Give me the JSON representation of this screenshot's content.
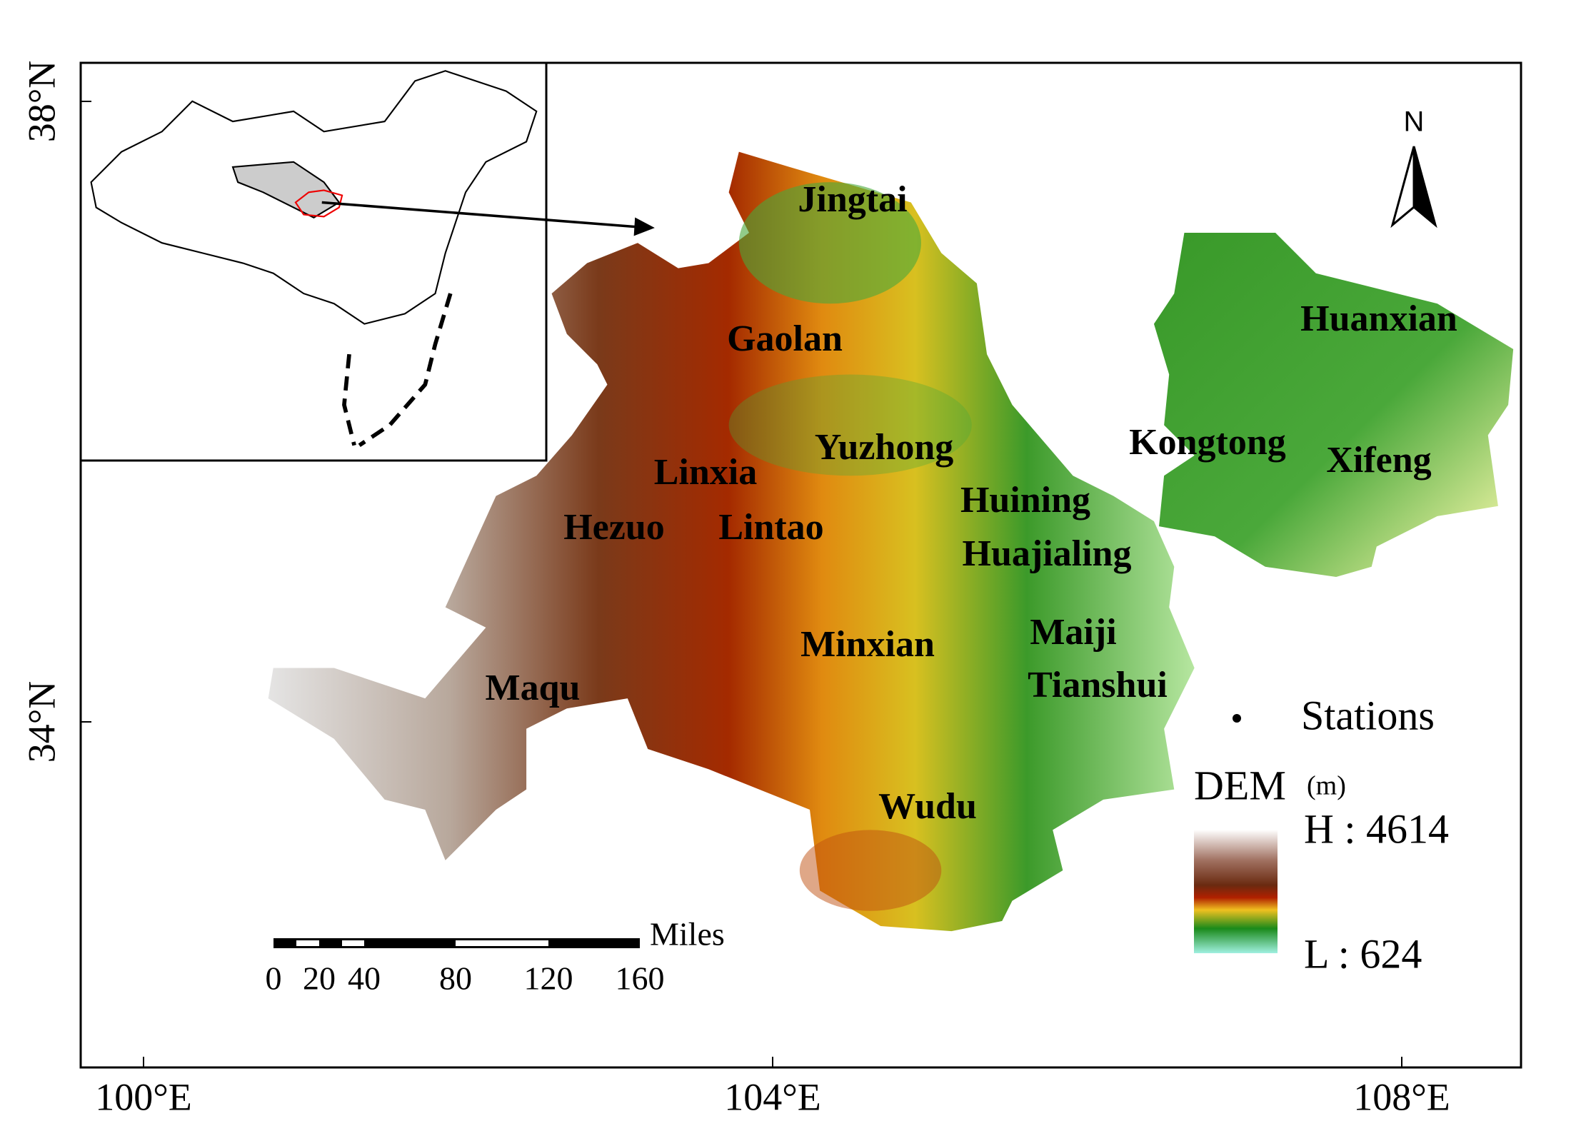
{
  "axes": {
    "x_labels": [
      "100°E",
      "104°E",
      "108°E"
    ],
    "y_labels": [
      "38°N",
      "34°N"
    ]
  },
  "north_arrow": "N",
  "stations": [
    "Jingtai",
    "Gaolan",
    "Huanxian",
    "Yuzhong",
    "Kongtong",
    "Xifeng",
    "Linxia",
    "Huining",
    "Hezuo",
    "Lintao",
    "Huajialing",
    "Minxian",
    "Maiji",
    "Maqu",
    "Tianshui",
    "Wudu"
  ],
  "legend": {
    "stations": "Stations",
    "dem": "DEM",
    "dem_unit": "(m)",
    "high": "H : 4614",
    "low": "L : 624"
  },
  "scale_bar": {
    "unit": "Miles",
    "labels": [
      "0",
      "20",
      "40",
      "80",
      "120",
      "160"
    ]
  }
}
